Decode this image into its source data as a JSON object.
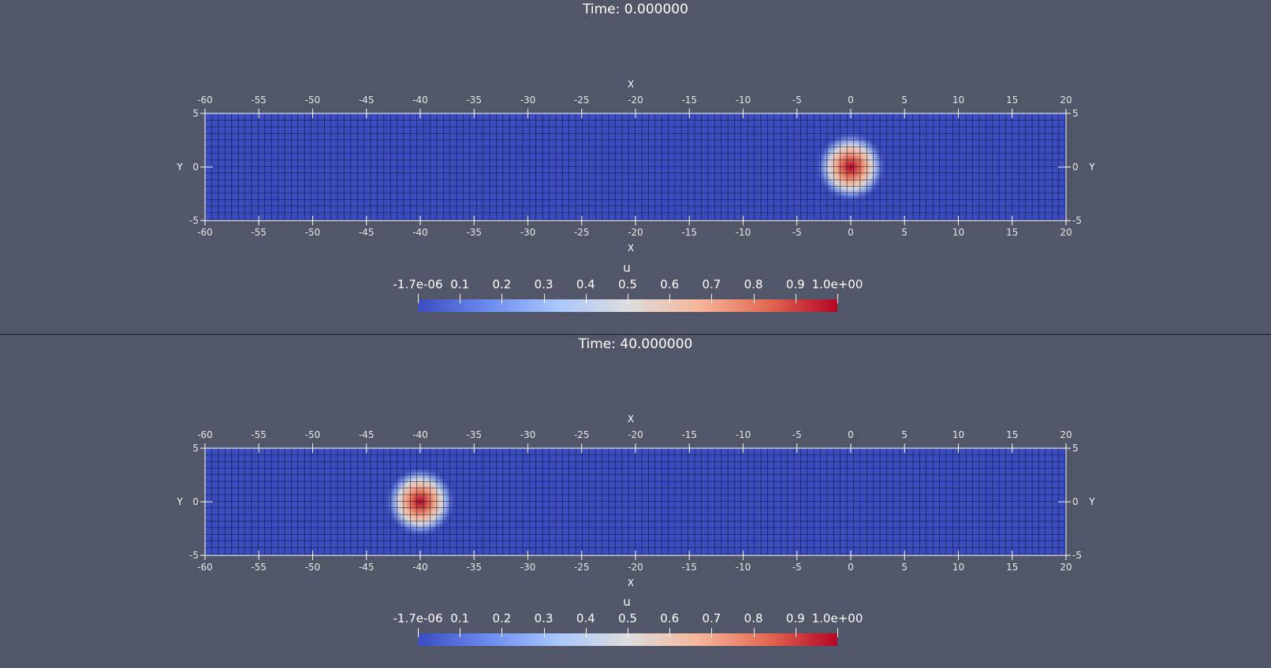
{
  "colors": {
    "background": "#525669",
    "mesh_base": "#3b4cc0",
    "mesh_line": "#0d1030",
    "colormap": [
      "#3b4cc0",
      "#6a8bef",
      "#aac7fd",
      "#dddddd",
      "#f6b89c",
      "#e26952",
      "#b40426"
    ]
  },
  "views": [
    {
      "time_label": "Time: 0.000000",
      "pulse_center_x": 0,
      "x_axis_title": "X",
      "y_axis_title": "Y",
      "x_range": [
        -60,
        20
      ],
      "y_range": [
        -5,
        5
      ],
      "x_ticks": [
        "-60",
        "-55",
        "-50",
        "-45",
        "-40",
        "-35",
        "-30",
        "-25",
        "-20",
        "-15",
        "-10",
        "-5",
        "0",
        "5",
        "10",
        "15",
        "20"
      ],
      "y_ticks": [
        "-5",
        "0",
        "5"
      ],
      "colorbar": {
        "title": "u",
        "labels": [
          "-1.7e-06",
          "0.1",
          "0.2",
          "0.3",
          "0.4",
          "0.5",
          "0.6",
          "0.7",
          "0.8",
          "0.9",
          "1.0e+00"
        ]
      }
    },
    {
      "time_label": "Time: 40.000000",
      "pulse_center_x": -40,
      "x_axis_title": "X",
      "y_axis_title": "Y",
      "x_range": [
        -60,
        20
      ],
      "y_range": [
        -5,
        5
      ],
      "x_ticks": [
        "-60",
        "-55",
        "-50",
        "-45",
        "-40",
        "-35",
        "-30",
        "-25",
        "-20",
        "-15",
        "-10",
        "-5",
        "0",
        "5",
        "10",
        "15",
        "20"
      ],
      "y_ticks": [
        "-5",
        "0",
        "5"
      ],
      "colorbar": {
        "title": "u",
        "labels": [
          "-1.7e-06",
          "0.1",
          "0.2",
          "0.3",
          "0.4",
          "0.5",
          "0.6",
          "0.7",
          "0.8",
          "0.9",
          "1.0e+00"
        ]
      }
    }
  ]
}
